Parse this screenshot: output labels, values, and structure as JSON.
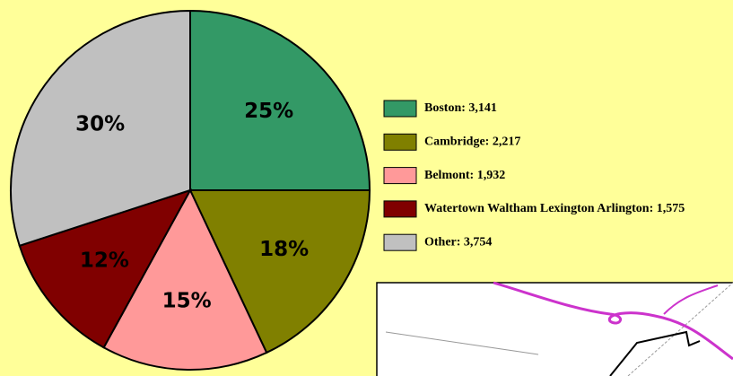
{
  "chart_data": {
    "type": "pie",
    "categories": [
      "Boston: 3,141",
      "Cambridge: 2,217",
      "Belmont: 1,932",
      "Watertown Waltham Lexington Arlington: 1,575",
      "Other: 3,754"
    ],
    "values": [
      25,
      18,
      15,
      12,
      30
    ],
    "value_labels": [
      "25%",
      "18%",
      "15%",
      "12%",
      "30%"
    ],
    "colors": [
      "#339966",
      "#808000",
      "#ff9999",
      "#800000",
      "#c0c0c0"
    ]
  }
}
